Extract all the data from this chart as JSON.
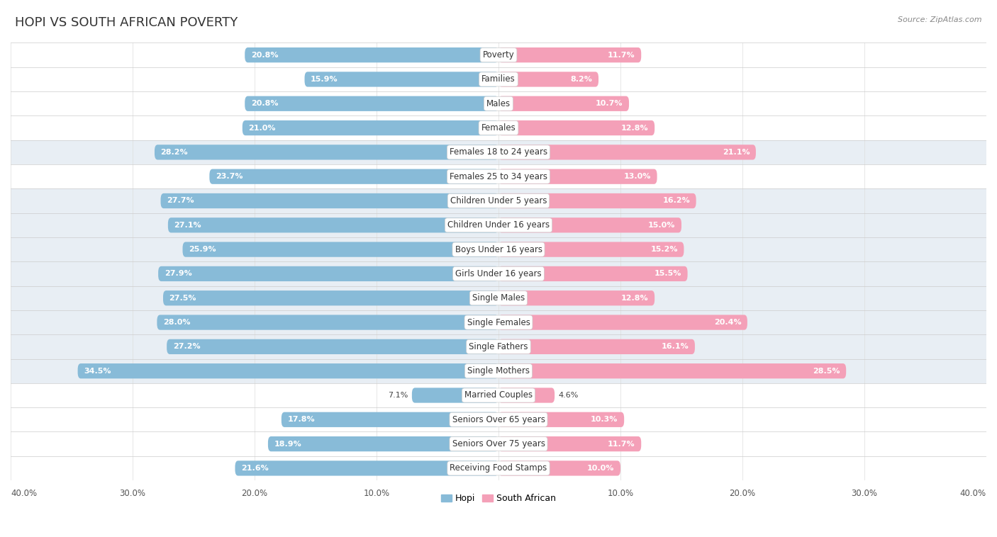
{
  "title": "Hopi vs South African Poverty",
  "source": "Source: ZipAtlas.com",
  "categories": [
    "Poverty",
    "Families",
    "Males",
    "Females",
    "Females 18 to 24 years",
    "Females 25 to 34 years",
    "Children Under 5 years",
    "Children Under 16 years",
    "Boys Under 16 years",
    "Girls Under 16 years",
    "Single Males",
    "Single Females",
    "Single Fathers",
    "Single Mothers",
    "Married Couples",
    "Seniors Over 65 years",
    "Seniors Over 75 years",
    "Receiving Food Stamps"
  ],
  "hopi_values": [
    20.8,
    15.9,
    20.8,
    21.0,
    28.2,
    23.7,
    27.7,
    27.1,
    25.9,
    27.9,
    27.5,
    28.0,
    27.2,
    34.5,
    7.1,
    17.8,
    18.9,
    21.6
  ],
  "sa_values": [
    11.7,
    8.2,
    10.7,
    12.8,
    21.1,
    13.0,
    16.2,
    15.0,
    15.2,
    15.5,
    12.8,
    20.4,
    16.1,
    28.5,
    4.6,
    10.3,
    11.7,
    10.0
  ],
  "hopi_color": "#88bbd8",
  "sa_color": "#f4a0b8",
  "hopi_label": "Hopi",
  "sa_label": "South African",
  "axis_max": 40.0,
  "background_color": "#ffffff",
  "row_light_color": "#ffffff",
  "row_dark_color": "#e8eef4",
  "title_fontsize": 13,
  "label_fontsize": 8.5,
  "value_fontsize": 8.0,
  "highlighted_rows": [
    4,
    6,
    7,
    8,
    9,
    10,
    11,
    12,
    13
  ]
}
